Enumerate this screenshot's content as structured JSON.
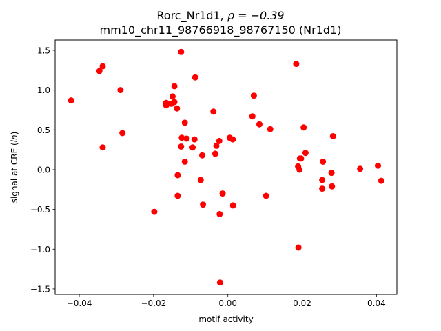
{
  "chart_data": {
    "type": "scatter",
    "title_line1_pre": "Rorc_Nr1d1, ",
    "title_line1_rho": "ρ = −0.39",
    "title_line2": "mm10_chr11_98766918_98767150 (Nr1d1)",
    "xlabel": "motif activity",
    "ylabel_pre": "signal at CRE (",
    "ylabel_var": "ln",
    "ylabel_post": ")",
    "xlim": [
      -0.0465,
      0.0455
    ],
    "ylim": [
      -1.57,
      1.63
    ],
    "xticks": [
      -0.04,
      -0.02,
      0.0,
      0.02,
      0.04
    ],
    "xtick_labels": [
      "−0.04",
      "−0.02",
      "0.00",
      "0.02",
      "0.04"
    ],
    "yticks": [
      -1.5,
      -1.0,
      -0.5,
      0.0,
      0.5,
      1.0,
      1.5
    ],
    "ytick_labels": [
      "−1.5",
      "−1.0",
      "−0.5",
      "0.0",
      "0.5",
      "1.0",
      "1.5"
    ],
    "grid": false,
    "marker_color": "#ff0000",
    "points": [
      {
        "x": -0.0422,
        "y": 0.87
      },
      {
        "x": -0.0346,
        "y": 1.24
      },
      {
        "x": -0.0337,
        "y": 1.3
      },
      {
        "x": -0.0337,
        "y": 0.28
      },
      {
        "x": -0.0289,
        "y": 1.0
      },
      {
        "x": -0.0284,
        "y": 0.46
      },
      {
        "x": -0.0198,
        "y": -0.53
      },
      {
        "x": -0.0166,
        "y": 0.84
      },
      {
        "x": -0.0166,
        "y": 0.81
      },
      {
        "x": -0.0152,
        "y": 0.83
      },
      {
        "x": -0.0149,
        "y": 0.92
      },
      {
        "x": -0.0144,
        "y": 1.05
      },
      {
        "x": -0.0144,
        "y": 0.85
      },
      {
        "x": -0.0137,
        "y": 0.77
      },
      {
        "x": -0.0135,
        "y": -0.07
      },
      {
        "x": -0.0135,
        "y": -0.33
      },
      {
        "x": -0.0126,
        "y": 1.48
      },
      {
        "x": -0.0126,
        "y": 0.29
      },
      {
        "x": -0.0124,
        "y": 0.4
      },
      {
        "x": -0.0116,
        "y": 0.59
      },
      {
        "x": -0.0116,
        "y": 0.1
      },
      {
        "x": -0.0111,
        "y": 0.39
      },
      {
        "x": -0.0095,
        "y": 0.28
      },
      {
        "x": -0.009,
        "y": 0.38
      },
      {
        "x": -0.0088,
        "y": 1.16
      },
      {
        "x": -0.0073,
        "y": -0.13
      },
      {
        "x": -0.0069,
        "y": 0.18
      },
      {
        "x": -0.0067,
        "y": -0.44
      },
      {
        "x": -0.0039,
        "y": 0.73
      },
      {
        "x": -0.0034,
        "y": 0.2
      },
      {
        "x": -0.0031,
        "y": 0.3
      },
      {
        "x": -0.0023,
        "y": 0.36
      },
      {
        "x": -0.0022,
        "y": -0.56
      },
      {
        "x": -0.0021,
        "y": -1.42
      },
      {
        "x": -0.0014,
        "y": -0.3
      },
      {
        "x": 0.0005,
        "y": 0.4
      },
      {
        "x": 0.0013,
        "y": 0.38
      },
      {
        "x": 0.0014,
        "y": -0.45
      },
      {
        "x": 0.0066,
        "y": 0.67
      },
      {
        "x": 0.007,
        "y": 0.93
      },
      {
        "x": 0.0085,
        "y": 0.57
      },
      {
        "x": 0.0103,
        "y": -0.33
      },
      {
        "x": 0.0114,
        "y": 0.51
      },
      {
        "x": 0.0184,
        "y": 1.33
      },
      {
        "x": 0.0189,
        "y": 0.04
      },
      {
        "x": 0.019,
        "y": -0.98
      },
      {
        "x": 0.0193,
        "y": 0.0
      },
      {
        "x": 0.0194,
        "y": 0.14
      },
      {
        "x": 0.0197,
        "y": 0.14
      },
      {
        "x": 0.0204,
        "y": 0.53
      },
      {
        "x": 0.0209,
        "y": 0.21
      },
      {
        "x": 0.0254,
        "y": -0.13
      },
      {
        "x": 0.0254,
        "y": -0.24
      },
      {
        "x": 0.0256,
        "y": 0.1
      },
      {
        "x": 0.0279,
        "y": -0.04
      },
      {
        "x": 0.028,
        "y": -0.21
      },
      {
        "x": 0.0283,
        "y": 0.42
      },
      {
        "x": 0.0356,
        "y": 0.01
      },
      {
        "x": 0.0404,
        "y": 0.05
      },
      {
        "x": 0.0413,
        "y": -0.14
      }
    ]
  }
}
